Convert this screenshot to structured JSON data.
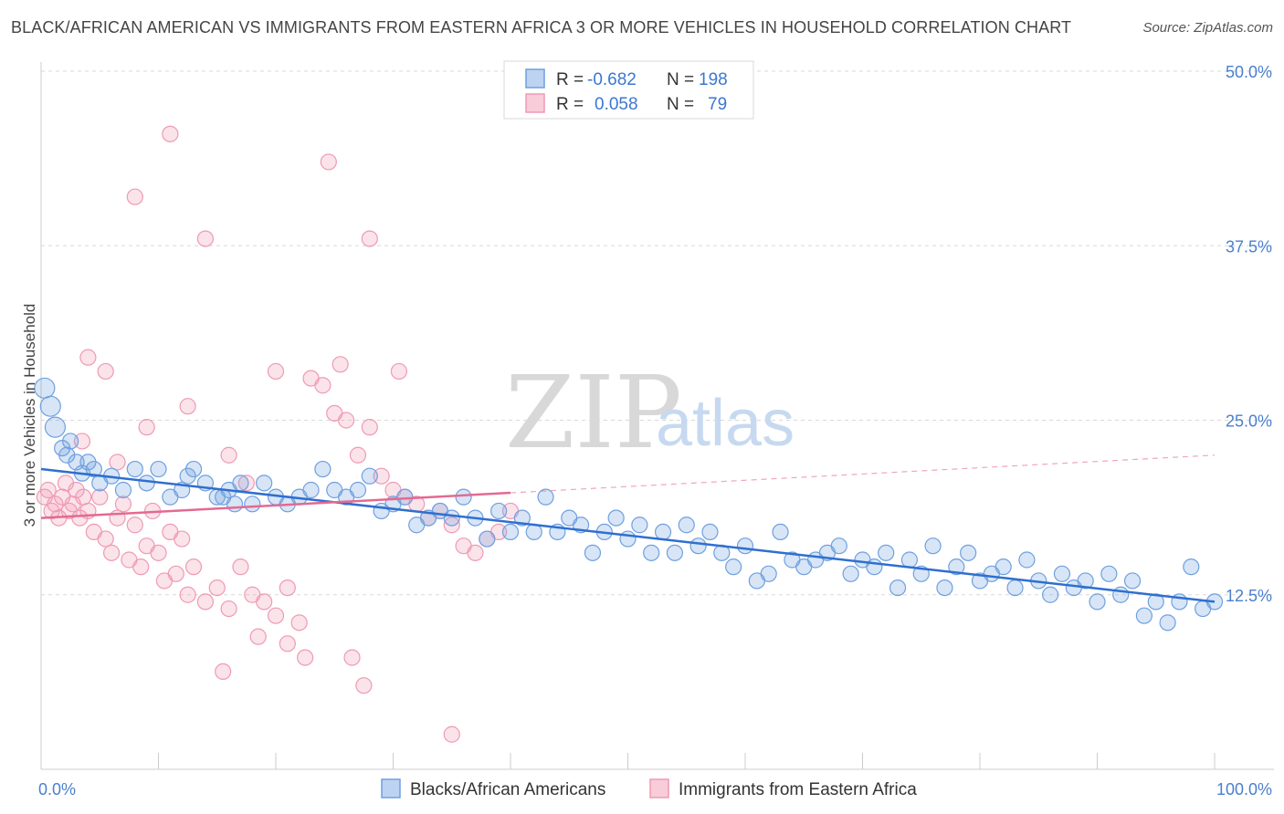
{
  "title": "BLACK/AFRICAN AMERICAN VS IMMIGRANTS FROM EASTERN AFRICA 3 OR MORE VEHICLES IN HOUSEHOLD CORRELATION CHART",
  "source": "Source: ZipAtlas.com",
  "watermark": {
    "zip": "ZIP",
    "atlas": "atlas"
  },
  "colors": {
    "blue": "#6fa0e0",
    "blue_line": "#2f6fcf",
    "pink": "#ef9ab4",
    "pink_line": "#e36a92",
    "grid": "#d9d9d9",
    "tick": "#4a7fcf"
  },
  "legend": {
    "rows": [
      {
        "r_label": "R =",
        "r_value": "-0.682",
        "n_label": "N =",
        "n_value": "198"
      },
      {
        "r_label": "R =",
        "r_value": "0.058",
        "n_label": "N =",
        "n_value": "79"
      }
    ]
  },
  "bottom_legend": [
    "Blacks/African Americans",
    "Immigrants from Eastern Africa"
  ],
  "chart_data": {
    "type": "scatter",
    "title": "BLACK/AFRICAN AMERICAN VS IMMIGRANTS FROM EASTERN AFRICA 3 OR MORE VEHICLES IN HOUSEHOLD CORRELATION CHART",
    "xlabel": "",
    "ylabel": "3 or more Vehicles in Household",
    "xlim": [
      0,
      100
    ],
    "ylim": [
      0,
      50
    ],
    "x_tick_labels": [
      "0.0%",
      "100.0%"
    ],
    "y_ticks": [
      12.5,
      25.0,
      37.5,
      50.0
    ],
    "y_tick_labels": [
      "12.5%",
      "25.0%",
      "37.5%",
      "50.0%"
    ],
    "grid": true,
    "legend_position": "top-center",
    "series": [
      {
        "name": "Blacks/African Americans",
        "color": "#6fa0e0",
        "trend": {
          "x": [
            0,
            100
          ],
          "y": [
            21.5,
            12.0
          ]
        },
        "points": [
          [
            0.3,
            27.3
          ],
          [
            0.8,
            26.0
          ],
          [
            1.2,
            24.5
          ],
          [
            1.8,
            23.0
          ],
          [
            2.2,
            22.5
          ],
          [
            2.5,
            23.5
          ],
          [
            3.0,
            22.0
          ],
          [
            3.5,
            21.2
          ],
          [
            4.0,
            22.0
          ],
          [
            4.5,
            21.5
          ],
          [
            5.0,
            20.5
          ],
          [
            6.0,
            21.0
          ],
          [
            7.0,
            20.0
          ],
          [
            8.0,
            21.5
          ],
          [
            9.0,
            20.5
          ],
          [
            10.0,
            21.5
          ],
          [
            11.0,
            19.5
          ],
          [
            12.0,
            20.0
          ],
          [
            12.5,
            21.0
          ],
          [
            13.0,
            21.5
          ],
          [
            14.0,
            20.5
          ],
          [
            15.0,
            19.5
          ],
          [
            15.5,
            19.5
          ],
          [
            16.0,
            20.0
          ],
          [
            16.5,
            19.0
          ],
          [
            17.0,
            20.5
          ],
          [
            18.0,
            19.0
          ],
          [
            19.0,
            20.5
          ],
          [
            20.0,
            19.5
          ],
          [
            21.0,
            19.0
          ],
          [
            22.0,
            19.5
          ],
          [
            23.0,
            20.0
          ],
          [
            24.0,
            21.5
          ],
          [
            25.0,
            20.0
          ],
          [
            26.0,
            19.5
          ],
          [
            27.0,
            20.0
          ],
          [
            28.0,
            21.0
          ],
          [
            29.0,
            18.5
          ],
          [
            30.0,
            19.0
          ],
          [
            31.0,
            19.5
          ],
          [
            32.0,
            17.5
          ],
          [
            33.0,
            18.0
          ],
          [
            34.0,
            18.5
          ],
          [
            35.0,
            18.0
          ],
          [
            36.0,
            19.5
          ],
          [
            37.0,
            18.0
          ],
          [
            38.0,
            16.5
          ],
          [
            39.0,
            18.5
          ],
          [
            40.0,
            17.0
          ],
          [
            41.0,
            18.0
          ],
          [
            42.0,
            17.0
          ],
          [
            43.0,
            19.5
          ],
          [
            44.0,
            17.0
          ],
          [
            45.0,
            18.0
          ],
          [
            46.0,
            17.5
          ],
          [
            47.0,
            15.5
          ],
          [
            48.0,
            17.0
          ],
          [
            49.0,
            18.0
          ],
          [
            50.0,
            16.5
          ],
          [
            51.0,
            17.5
          ],
          [
            52.0,
            15.5
          ],
          [
            53.0,
            17.0
          ],
          [
            54.0,
            15.5
          ],
          [
            55.0,
            17.5
          ],
          [
            56.0,
            16.0
          ],
          [
            57.0,
            17.0
          ],
          [
            58.0,
            15.5
          ],
          [
            59.0,
            14.5
          ],
          [
            60.0,
            16.0
          ],
          [
            61.0,
            13.5
          ],
          [
            62.0,
            14.0
          ],
          [
            63.0,
            17.0
          ],
          [
            64.0,
            15.0
          ],
          [
            65.0,
            14.5
          ],
          [
            66.0,
            15.0
          ],
          [
            67.0,
            15.5
          ],
          [
            68.0,
            16.0
          ],
          [
            69.0,
            14.0
          ],
          [
            70.0,
            15.0
          ],
          [
            71.0,
            14.5
          ],
          [
            72.0,
            15.5
          ],
          [
            73.0,
            13.0
          ],
          [
            74.0,
            15.0
          ],
          [
            75.0,
            14.0
          ],
          [
            76.0,
            16.0
          ],
          [
            77.0,
            13.0
          ],
          [
            78.0,
            14.5
          ],
          [
            79.0,
            15.5
          ],
          [
            80.0,
            13.5
          ],
          [
            81.0,
            14.0
          ],
          [
            82.0,
            14.5
          ],
          [
            83.0,
            13.0
          ],
          [
            84.0,
            15.0
          ],
          [
            85.0,
            13.5
          ],
          [
            86.0,
            12.5
          ],
          [
            87.0,
            14.0
          ],
          [
            88.0,
            13.0
          ],
          [
            89.0,
            13.5
          ],
          [
            90.0,
            12.0
          ],
          [
            91.0,
            14.0
          ],
          [
            92.0,
            12.5
          ],
          [
            93.0,
            13.5
          ],
          [
            94.0,
            11.0
          ],
          [
            95.0,
            12.0
          ],
          [
            96.0,
            10.5
          ],
          [
            97.0,
            12.0
          ],
          [
            98.0,
            14.5
          ],
          [
            99.0,
            11.5
          ],
          [
            100.0,
            12.0
          ]
        ]
      },
      {
        "name": "Immigrants from Eastern Africa",
        "color": "#ef9ab4",
        "trend": {
          "x": [
            0,
            40
          ],
          "y": [
            18.0,
            19.8
          ]
        },
        "points": [
          [
            0.3,
            19.5
          ],
          [
            0.6,
            20.0
          ],
          [
            0.9,
            18.5
          ],
          [
            1.2,
            19.0
          ],
          [
            1.5,
            18.0
          ],
          [
            1.8,
            19.5
          ],
          [
            2.1,
            20.5
          ],
          [
            2.4,
            18.5
          ],
          [
            2.7,
            19.0
          ],
          [
            3.0,
            20.0
          ],
          [
            3.3,
            18.0
          ],
          [
            3.6,
            19.5
          ],
          [
            4.0,
            18.5
          ],
          [
            4.5,
            17.0
          ],
          [
            5.0,
            19.5
          ],
          [
            5.5,
            16.5
          ],
          [
            6.0,
            15.5
          ],
          [
            6.5,
            18.0
          ],
          [
            7.0,
            19.0
          ],
          [
            7.5,
            15.0
          ],
          [
            8.0,
            17.5
          ],
          [
            8.5,
            14.5
          ],
          [
            9.0,
            16.0
          ],
          [
            9.5,
            18.5
          ],
          [
            10.0,
            15.5
          ],
          [
            10.5,
            13.5
          ],
          [
            11.0,
            17.0
          ],
          [
            11.5,
            14.0
          ],
          [
            12.0,
            16.5
          ],
          [
            12.5,
            12.5
          ],
          [
            13.0,
            14.5
          ],
          [
            14.0,
            12.0
          ],
          [
            15.0,
            13.0
          ],
          [
            16.0,
            11.5
          ],
          [
            17.0,
            14.5
          ],
          [
            18.0,
            12.5
          ],
          [
            19.0,
            12.0
          ],
          [
            20.0,
            11.0
          ],
          [
            21.0,
            13.0
          ],
          [
            22.0,
            10.5
          ],
          [
            23.0,
            28.0
          ],
          [
            24.0,
            27.5
          ],
          [
            25.0,
            25.5
          ],
          [
            26.0,
            25.0
          ],
          [
            27.0,
            22.5
          ],
          [
            28.0,
            24.5
          ],
          [
            29.0,
            21.0
          ],
          [
            30.0,
            20.0
          ],
          [
            31.0,
            19.5
          ],
          [
            32.0,
            19.0
          ],
          [
            33.0,
            18.0
          ],
          [
            34.0,
            18.5
          ],
          [
            35.0,
            17.5
          ],
          [
            36.0,
            16.0
          ],
          [
            37.0,
            15.5
          ],
          [
            38.0,
            16.5
          ],
          [
            39.0,
            17.0
          ],
          [
            40.0,
            18.5
          ],
          [
            4.0,
            29.5
          ],
          [
            5.5,
            28.5
          ],
          [
            11.0,
            45.5
          ],
          [
            14.0,
            38.0
          ],
          [
            28.0,
            38.0
          ],
          [
            24.5,
            43.5
          ],
          [
            8.0,
            41.0
          ],
          [
            20.0,
            28.5
          ],
          [
            30.5,
            28.5
          ],
          [
            25.5,
            29.0
          ],
          [
            3.5,
            23.5
          ],
          [
            6.5,
            22.0
          ],
          [
            9.0,
            24.5
          ],
          [
            12.5,
            26.0
          ],
          [
            16.0,
            22.5
          ],
          [
            17.5,
            20.5
          ],
          [
            18.5,
            9.5
          ],
          [
            21.0,
            9.0
          ],
          [
            22.5,
            8.0
          ],
          [
            26.5,
            8.0
          ],
          [
            27.5,
            6.0
          ],
          [
            35.0,
            2.5
          ],
          [
            15.5,
            7.0
          ]
        ]
      }
    ]
  }
}
